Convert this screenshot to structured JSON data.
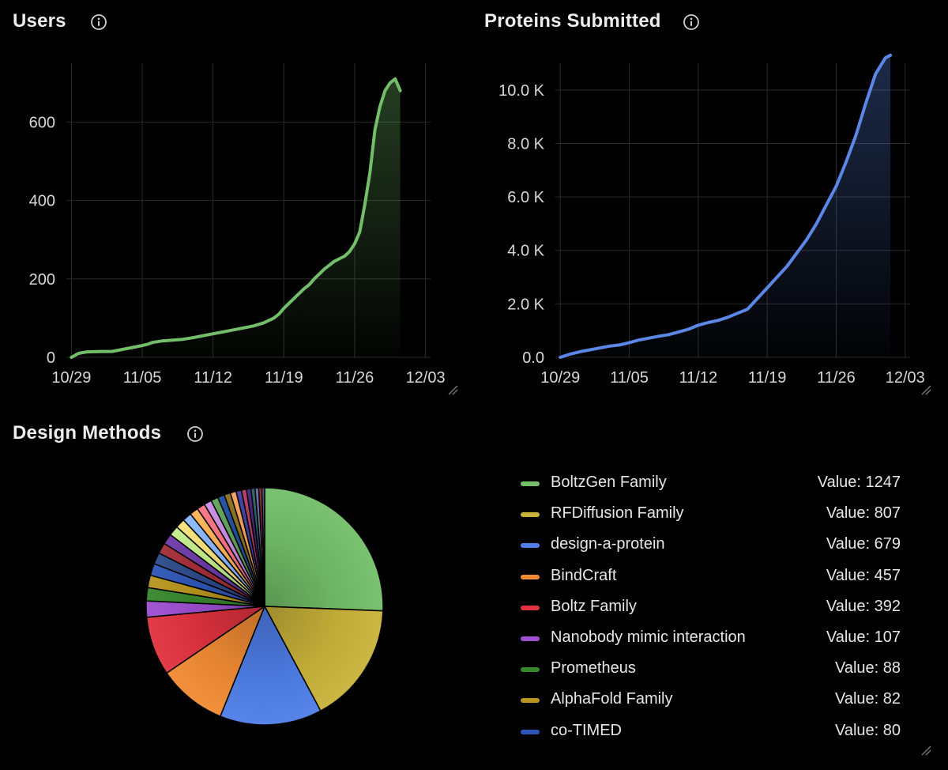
{
  "panels": {
    "users": {
      "title": "Users"
    },
    "proteins": {
      "title": "Proteins Submitted"
    },
    "methods": {
      "title": "Design Methods",
      "value_prefix": "Value: "
    }
  },
  "chart_data": [
    {
      "type": "area",
      "title": "Users",
      "color": "#73bf69",
      "x_tick_labels": [
        "10/29",
        "11/05",
        "11/12",
        "11/19",
        "11/26",
        "12/03"
      ],
      "x_tick_days": [
        0,
        7,
        14,
        21,
        28,
        35
      ],
      "x_range_days": [
        -0.5,
        35.5
      ],
      "y_ticks": [
        0,
        200,
        400,
        600
      ],
      "y_tick_labels": [
        "0",
        "200",
        "400",
        "600"
      ],
      "ylim": [
        0,
        750
      ],
      "series": [
        {
          "name": "Users",
          "x_days": [
            0,
            0.7,
            1.5,
            3,
            4,
            5,
            6,
            7,
            7.5,
            8,
            9,
            10,
            11,
            12,
            13,
            14,
            15,
            16,
            17,
            18,
            19,
            20,
            20.5,
            21,
            22,
            23,
            23.5,
            24,
            25,
            26,
            27,
            27.5,
            28,
            28.5,
            29,
            29.5,
            30,
            30.5,
            31,
            31.5,
            32,
            32.5
          ],
          "values": [
            0,
            10,
            14,
            15,
            15,
            20,
            25,
            30,
            33,
            38,
            42,
            44,
            46,
            50,
            55,
            60,
            65,
            70,
            75,
            80,
            88,
            100,
            110,
            125,
            150,
            175,
            185,
            200,
            225,
            245,
            258,
            270,
            290,
            320,
            390,
            470,
            580,
            640,
            680,
            700,
            710,
            680
          ]
        }
      ]
    },
    {
      "type": "area",
      "title": "Proteins Submitted",
      "color": "#5b87e6",
      "x_tick_labels": [
        "10/29",
        "11/05",
        "11/12",
        "11/19",
        "11/26",
        "12/03"
      ],
      "x_tick_days": [
        0,
        7,
        14,
        21,
        28,
        35
      ],
      "x_range_days": [
        -0.5,
        35.5
      ],
      "y_ticks": [
        0,
        2000,
        4000,
        6000,
        8000,
        10000
      ],
      "y_tick_labels": [
        "0.0",
        "2.0 K",
        "4.0 K",
        "6.0 K",
        "8.0 K",
        "10.0 K"
      ],
      "ylim": [
        0,
        11000
      ],
      "series": [
        {
          "name": "Proteins Submitted",
          "x_days": [
            0,
            1,
            2,
            3,
            4,
            5,
            6,
            7,
            8,
            9,
            10,
            11,
            12,
            13,
            14,
            15,
            16,
            17,
            18,
            19,
            20,
            21,
            22,
            23,
            24,
            25,
            26,
            27,
            28,
            29,
            30,
            31,
            32,
            33,
            33.5
          ],
          "values": [
            0,
            120,
            210,
            280,
            350,
            420,
            460,
            550,
            650,
            720,
            790,
            850,
            950,
            1050,
            1200,
            1300,
            1380,
            1500,
            1650,
            1800,
            2200,
            2600,
            3000,
            3400,
            3900,
            4400,
            5000,
            5700,
            6400,
            7300,
            8300,
            9500,
            10600,
            11200,
            11300
          ]
        }
      ]
    },
    {
      "type": "pie",
      "title": "Design Methods",
      "slices": [
        {
          "label": "BoltzGen Family",
          "value": 1247,
          "color": "#73bf69"
        },
        {
          "label": "RFDiffusion Family",
          "value": 807,
          "color": "#c9b33a"
        },
        {
          "label": "design-a-protein",
          "value": 679,
          "color": "#4f7ee8"
        },
        {
          "label": "BindCraft",
          "value": 457,
          "color": "#f08b34"
        },
        {
          "label": "Boltz Family",
          "value": 392,
          "color": "#e0323f"
        },
        {
          "label": "Nanobody mimic interaction",
          "value": 107,
          "color": "#9d4fd0"
        },
        {
          "label": "Prometheus",
          "value": 88,
          "color": "#37872d"
        },
        {
          "label": "AlphaFold Family",
          "value": 82,
          "color": "#b8951e"
        },
        {
          "label": "co-TIMED",
          "value": 80,
          "color": "#2e56b8"
        }
      ],
      "hidden_slice_values": [
        76,
        72,
        70,
        66,
        63,
        60,
        57,
        54,
        51,
        48,
        45,
        42,
        39,
        36,
        33,
        30,
        27,
        24,
        21,
        18
      ],
      "hidden_slice_colors": [
        "#2c4a8a",
        "#a52d38",
        "#6d3aa8",
        "#c4ed8a",
        "#f6e27a",
        "#8ab8ff",
        "#ffb357",
        "#ff7383",
        "#c98de4",
        "#5fa35a",
        "#1f4fa0",
        "#8a6f1a",
        "#f5a15b",
        "#3c3fa0",
        "#b03a62",
        "#48207a",
        "#2a6060",
        "#6a6aa8",
        "#8a2a2a",
        "#505080"
      ]
    }
  ]
}
